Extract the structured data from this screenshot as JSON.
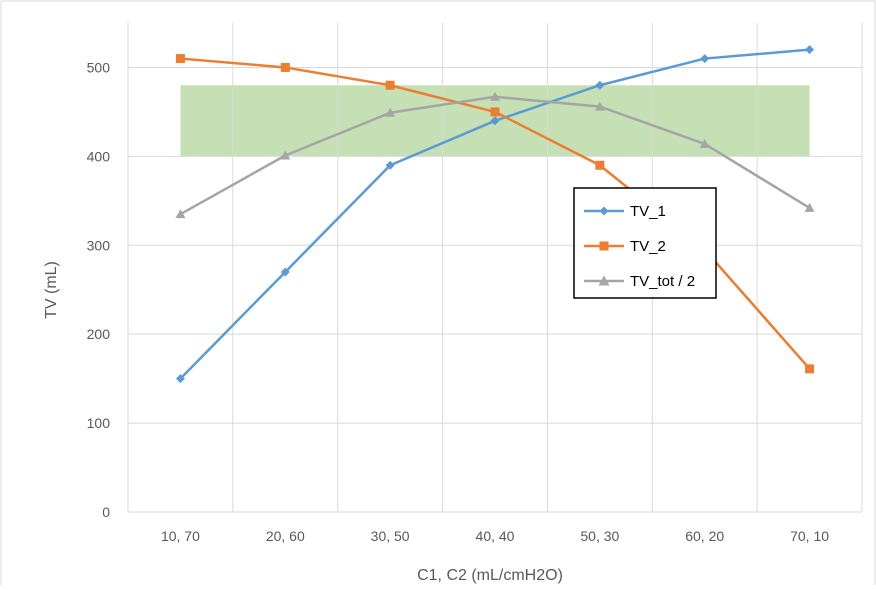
{
  "chart_data": {
    "type": "line",
    "title": "",
    "xlabel": "C1, C2 (mL/cmH2O)",
    "ylabel": "TV (mL)",
    "categories": [
      "10, 70",
      "20, 60",
      "30, 50",
      "40, 40",
      "50, 30",
      "60, 20",
      "70, 10"
    ],
    "ylim": [
      0,
      550
    ],
    "yticks": [
      0,
      100,
      200,
      300,
      400,
      500
    ],
    "grid": true,
    "legend_position": "right",
    "highlight_band": {
      "from_category_index": 0,
      "to_category_index": 6,
      "y_min": 400,
      "y_max": 480,
      "color": "#c5e0b4"
    },
    "series": [
      {
        "name": "TV_1",
        "color": "#5b9bd5",
        "marker": "diamond",
        "values": [
          150,
          270,
          390,
          440,
          480,
          510,
          520
        ]
      },
      {
        "name": "TV_2",
        "color": "#ed7d31",
        "marker": "square",
        "values": [
          510,
          500,
          480,
          450,
          390,
          295,
          161
        ]
      },
      {
        "name": "TV_tot / 2",
        "color": "#a5a5a5",
        "marker": "triangle",
        "values": [
          335,
          401,
          449,
          467,
          456,
          414,
          342
        ]
      }
    ]
  }
}
